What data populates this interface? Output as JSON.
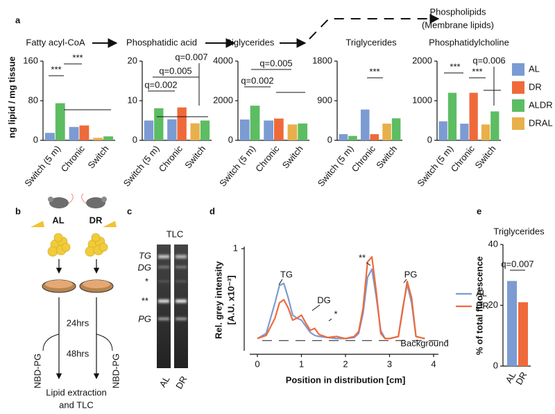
{
  "panel_labels": [
    "a",
    "b",
    "c",
    "d",
    "e"
  ],
  "pathway": {
    "upper": [
      "Phospholipids",
      "(Membrane lipids)"
    ]
  },
  "chart_data": [
    {
      "type": "multi_bar",
      "ylabel": "ng lipid / mg tissue",
      "series": [
        {
          "name": "AL",
          "color": "#7b9bd3"
        },
        {
          "name": "DR",
          "color": "#ef6a3a"
        },
        {
          "name": "ALDR",
          "color": "#5dbd63"
        },
        {
          "name": "DRAL",
          "color": "#e8b04b"
        }
      ],
      "panels": [
        {
          "title": "Fatty acyl-CoA",
          "categories": [
            "Switch (5 m)",
            "Chronic",
            "Switch"
          ],
          "ylim": [
            0,
            160
          ],
          "yticks": [
            0,
            80,
            160
          ],
          "values": [
            [
              15,
              27,
              null
            ],
            [
              null,
              30,
              null
            ],
            [
              75,
              null,
              8
            ],
            [
              null,
              null,
              5
            ]
          ],
          "annotations": [
            "***",
            "***"
          ]
        },
        {
          "title": "Phosphatidic acid",
          "categories": [
            "Switch (5 m)",
            "Chronic",
            "Switch"
          ],
          "ylim": [
            0,
            20
          ],
          "yticks": [
            0,
            10,
            20
          ],
          "values": [
            [
              5,
              5.3,
              null
            ],
            [
              null,
              8.3,
              null
            ],
            [
              8.1,
              null,
              5
            ],
            [
              null,
              null,
              4.3
            ]
          ],
          "annotations": [
            "q=0.002",
            "q=0.005",
            "q=0.007"
          ]
        },
        {
          "title": "Diglycerides",
          "categories": [
            "Switch (5 m)",
            "Chronic",
            "Switch"
          ],
          "ylim": [
            0,
            4000
          ],
          "yticks": [
            0,
            2000,
            4000
          ],
          "values": [
            [
              1050,
              1000,
              null
            ],
            [
              null,
              1100,
              null
            ],
            [
              1750,
              null,
              850
            ],
            [
              null,
              null,
              800
            ]
          ],
          "annotations": [
            "q=0.002",
            "q=0.005"
          ]
        },
        {
          "title": "Triglycerides",
          "categories": [
            "Switch (5 m)",
            "Chronic",
            "Switch"
          ],
          "ylim": [
            0,
            1800
          ],
          "yticks": [
            0,
            900,
            1800
          ],
          "values": [
            [
              140,
              700,
              null
            ],
            [
              null,
              140,
              null
            ],
            [
              100,
              null,
              500
            ],
            [
              null,
              null,
              380
            ]
          ],
          "annotations": [
            "***"
          ]
        },
        {
          "title": "Phosphatidylcholine",
          "categories": [
            "Switch (5 m)",
            "Chronic",
            "Switch"
          ],
          "ylim": [
            0,
            2000
          ],
          "yticks": [
            0,
            1000,
            2000
          ],
          "values": [
            [
              480,
              420,
              null
            ],
            [
              null,
              1200,
              null
            ],
            [
              1200,
              null,
              730
            ],
            [
              null,
              null,
              400
            ]
          ],
          "annotations": [
            "***",
            "***",
            "q=0.006"
          ]
        }
      ]
    },
    {
      "type": "line",
      "ylabel": [
        "Rel. grey intensity",
        "[A.U. x10⁻³]"
      ],
      "xlabel": "Position in distribution [cm]",
      "xlim": [
        0,
        4
      ],
      "xticks": [
        0,
        1,
        2,
        3,
        4
      ],
      "ylim": [
        0,
        1
      ],
      "yticks": [
        1
      ],
      "x": [
        0,
        0.2,
        0.4,
        0.5,
        0.6,
        0.7,
        0.8,
        0.9,
        1.0,
        1.1,
        1.2,
        1.3,
        1.4,
        1.6,
        1.8,
        2.0,
        2.2,
        2.3,
        2.4,
        2.5,
        2.6,
        2.7,
        2.8,
        2.9,
        3.0,
        3.2,
        3.3,
        3.4,
        3.5,
        3.6,
        3.8
      ],
      "series": [
        {
          "name": "AL",
          "color": "#7b9bd3",
          "values": [
            0.12,
            0.17,
            0.47,
            0.64,
            0.66,
            0.52,
            0.35,
            0.32,
            0.3,
            0.24,
            0.18,
            0.15,
            0.14,
            0.13,
            0.12,
            0.12,
            0.13,
            0.17,
            0.37,
            0.72,
            0.8,
            0.52,
            0.2,
            0.12,
            0.12,
            0.14,
            0.42,
            0.65,
            0.47,
            0.14,
            0.12
          ]
        },
        {
          "name": "DR",
          "color": "#ef6a3a",
          "values": [
            0.12,
            0.15,
            0.32,
            0.47,
            0.5,
            0.42,
            0.3,
            0.32,
            0.35,
            0.27,
            0.2,
            0.22,
            0.16,
            0.13,
            0.14,
            0.12,
            0.14,
            0.19,
            0.42,
            0.87,
            0.92,
            0.57,
            0.17,
            0.12,
            0.12,
            0.14,
            0.4,
            0.68,
            0.52,
            0.14,
            0.12
          ]
        }
      ],
      "background_level": 0.1,
      "annotations": [
        "TG",
        "DG",
        "*",
        "**",
        "PG",
        "Background"
      ]
    },
    {
      "type": "bar",
      "title": "Triglycerides",
      "ylabel": "% of total fluorescence",
      "categories": [
        "AL",
        "DR"
      ],
      "values": [
        28,
        21
      ],
      "colors": [
        "#7b9bd3",
        "#ef6a3a"
      ],
      "ylim": [
        0,
        40
      ],
      "yticks": [
        0,
        20,
        40
      ],
      "annotations": [
        "q=0.007"
      ]
    }
  ],
  "scheme": {
    "groups": [
      "AL",
      "DR"
    ],
    "times": [
      "24hrs",
      "48hrs"
    ],
    "label_left": "NBD-PG",
    "label_right": "NBD-PG",
    "final": [
      "Lipid extraction",
      "and TLC"
    ]
  },
  "tlc": {
    "title": "TLC",
    "lanes": [
      "AL",
      "DR"
    ],
    "bands": [
      "TG",
      "DG",
      "*",
      "**",
      "PG"
    ]
  }
}
